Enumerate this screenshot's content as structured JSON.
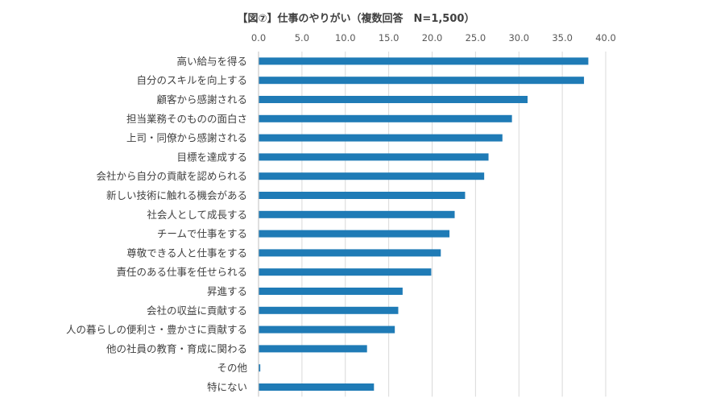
{
  "chart_data": {
    "type": "bar",
    "orientation": "horizontal",
    "title": "【図⑦】仕事のやりがい（複数回答　N=1,500）",
    "xlabel": "",
    "ylabel": "",
    "xlim": [
      0,
      40
    ],
    "ticks": [
      "0.0",
      "5.0",
      "10.0",
      "15.0",
      "20.0",
      "25.0",
      "30.0",
      "35.0",
      "40.0"
    ],
    "grid": true,
    "bar_color": "#1f7bb6",
    "categories": [
      "高い給与を得る",
      "自分のスキルを向上する",
      "顧客から感謝される",
      "担当業務そのものの面白さ",
      "上司・同僚から感謝される",
      "目標を達成する",
      "会社から自分の貢献を認められる",
      "新しい技術に触れる機会がある",
      "社会人として成長する",
      "チームで仕事をする",
      "尊敬できる人と仕事をする",
      "責任のある仕事を任せられる",
      "昇進する",
      "会社の収益に貢献する",
      "人の暮らしの便利さ・豊かさに貢献する",
      "他の社員の教育・育成に関わる",
      "その他",
      "特にない"
    ],
    "values": [
      38.0,
      37.5,
      31.0,
      29.2,
      28.1,
      26.5,
      26.0,
      23.8,
      22.6,
      22.0,
      21.0,
      19.9,
      16.6,
      16.1,
      15.7,
      12.5,
      0.2,
      13.3
    ]
  }
}
